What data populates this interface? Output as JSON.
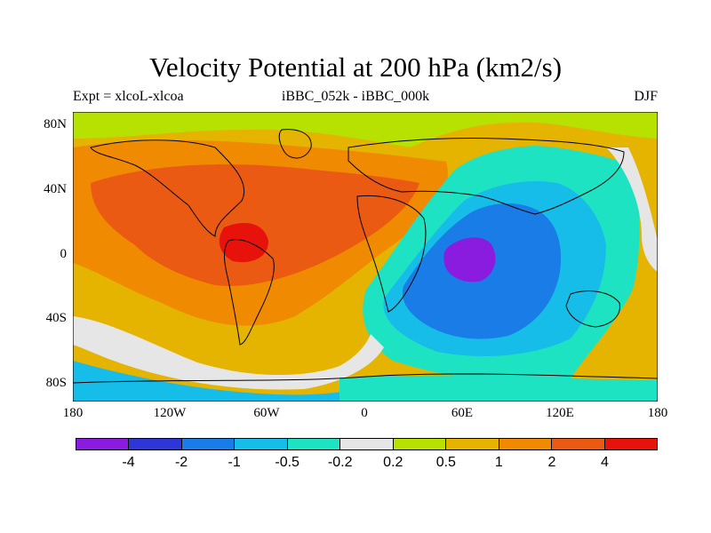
{
  "title": "Velocity Potential at 200 hPa (km2/s)",
  "left_label": "Expt = xlcoL-xlcoa",
  "center_label": "iBBC_052k - iBBC_000k",
  "right_label": "DJF",
  "lat_ticks": [
    "80N",
    "40N",
    "0",
    "40S",
    "80S"
  ],
  "lon_ticks": [
    "180",
    "120W",
    "60W",
    "0",
    "60E",
    "120E",
    "180"
  ],
  "colorbar": {
    "colors": [
      "#8a1ce0",
      "#2f36d8",
      "#1a7ce6",
      "#16bde8",
      "#1ee3c2",
      "#e6e6e6",
      "#b7e100",
      "#e4b400",
      "#f08a00",
      "#ea5a12",
      "#e8120c"
    ],
    "labels": [
      "-4",
      "-2",
      "-1",
      "-0.5",
      "-0.2",
      "0.2",
      "0.5",
      "1",
      "2",
      "4"
    ]
  },
  "map_regions": {
    "background": "level-7",
    "fill_color_ref": "colorbar.colors"
  }
}
